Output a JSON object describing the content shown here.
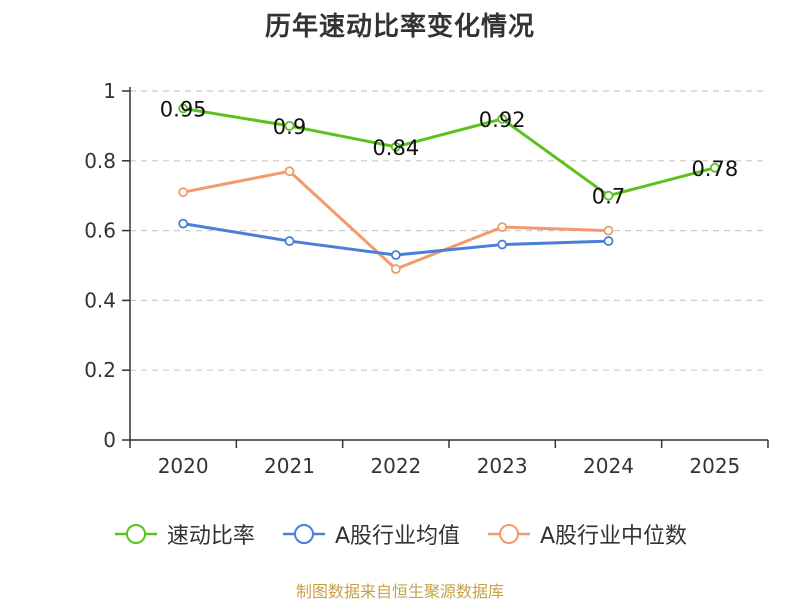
{
  "chart_data": {
    "type": "line",
    "title": "历年速动比率变化情况",
    "categories": [
      "2020",
      "2021",
      "2022",
      "2023",
      "2024",
      "2025"
    ],
    "ylim": [
      0,
      1
    ],
    "yticks": [
      "0",
      "0.2",
      "0.4",
      "0.6",
      "0.8",
      "1"
    ],
    "ytick_values": [
      0,
      0.2,
      0.4,
      0.6,
      0.8,
      1
    ],
    "grid": true,
    "legend_position": "bottom",
    "series": [
      {
        "name": "速动比率",
        "color": "#5cc11f",
        "values": [
          0.95,
          0.9,
          0.84,
          0.92,
          0.7,
          0.78
        ],
        "labels": [
          "0.95",
          "0.9",
          "0.84",
          "0.92",
          "0.7",
          "0.78"
        ]
      },
      {
        "name": "A股行业均值",
        "color": "#4a7fd8",
        "values": [
          0.62,
          0.57,
          0.53,
          0.56,
          0.57,
          null
        ]
      },
      {
        "name": "A股行业中位数",
        "color": "#f39a6c",
        "values": [
          0.71,
          0.77,
          0.49,
          0.61,
          0.6,
          null
        ]
      }
    ]
  },
  "source_text": "制图数据来自恒生聚源数据库"
}
